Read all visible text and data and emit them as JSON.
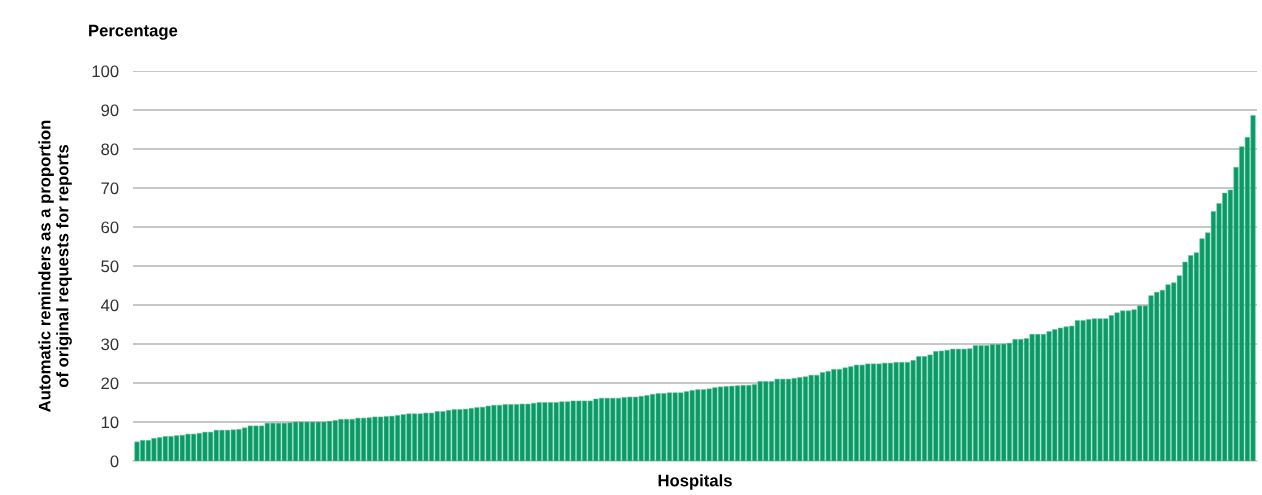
{
  "chart_data": {
    "type": "bar",
    "title": "Percentage",
    "xlabel": "Hospitals",
    "ylabel": "Automatic reminders as a proportion\nof original requests for reports",
    "categories": [
      null,
      null,
      null,
      null,
      null,
      null,
      null,
      null,
      null,
      null,
      null,
      null,
      null,
      null,
      null,
      null,
      null,
      null,
      null,
      null,
      null,
      null,
      null,
      null,
      null,
      null,
      null,
      null,
      null,
      null,
      null,
      null,
      null,
      null,
      null,
      null,
      null,
      null,
      null,
      null,
      null,
      null,
      null,
      null,
      null,
      null,
      null,
      null,
      null,
      null,
      null,
      null,
      null,
      null,
      null,
      null,
      null,
      null,
      null,
      null,
      null,
      null,
      null,
      null,
      null,
      null,
      null,
      null,
      null,
      null,
      null,
      null,
      null,
      null,
      null,
      null,
      null,
      null,
      null,
      null,
      null,
      null,
      null,
      null,
      null,
      null,
      null,
      null,
      null,
      null,
      null,
      null,
      null,
      null,
      null,
      null,
      null,
      null,
      null,
      null,
      null,
      null,
      null,
      null,
      null,
      null,
      null,
      null,
      null,
      null,
      null,
      null,
      null,
      null,
      null,
      null,
      null,
      null,
      null,
      null,
      null,
      null,
      null,
      null,
      null,
      null,
      null,
      null,
      null,
      null,
      null,
      null,
      null,
      null,
      null,
      null,
      null,
      null,
      null,
      null,
      null,
      null,
      null,
      null,
      null,
      null,
      null,
      null,
      null,
      null,
      null,
      null,
      null,
      null,
      null,
      null,
      null,
      null,
      null,
      null,
      null,
      null,
      null,
      null,
      null,
      null,
      null,
      null,
      null,
      null,
      null,
      null,
      null,
      null,
      null,
      null,
      null,
      null,
      null,
      null,
      null,
      null,
      null,
      null,
      null,
      null,
      null,
      null,
      null,
      null,
      null,
      null,
      null,
      null,
      null,
      null,
      null,
      null
    ],
    "values": [
      4.9,
      5.3,
      5.3,
      5.8,
      6,
      6.3,
      6.3,
      6.5,
      6.6,
      6.9,
      6.9,
      7.1,
      7.4,
      7.4,
      7.9,
      7.9,
      7.9,
      8,
      8.1,
      8.5,
      9,
      9,
      9,
      9.7,
      9.7,
      9.7,
      9.7,
      9.8,
      10,
      10,
      10,
      10,
      10,
      10,
      10.2,
      10.4,
      10.7,
      10.7,
      10.7,
      11,
      11,
      11.1,
      11.3,
      11.3,
      11.4,
      11.5,
      11.7,
      11.9,
      12.1,
      12.1,
      12.1,
      12.3,
      12.3,
      12.7,
      12.7,
      13,
      13.2,
      13.2,
      13.3,
      13.5,
      13.7,
      13.8,
      14.1,
      14.3,
      14.3,
      14.5,
      14.5,
      14.5,
      14.6,
      14.6,
      14.8,
      15,
      15,
      15,
      15,
      15.2,
      15.2,
      15.4,
      15.4,
      15.4,
      15.4,
      15.9,
      16.1,
      16.1,
      16.1,
      16.1,
      16.3,
      16.4,
      16.4,
      16.6,
      16.8,
      17.1,
      17.3,
      17.3,
      17.5,
      17.5,
      17.5,
      17.8,
      18.1,
      18.3,
      18.3,
      18.5,
      18.8,
      19,
      19.1,
      19.2,
      19.3,
      19.4,
      19.4,
      19.6,
      20.4,
      20.4,
      20.4,
      21,
      21,
      21,
      21.2,
      21.4,
      21.6,
      22,
      22,
      22.7,
      23,
      23.5,
      23.5,
      23.9,
      24.2,
      24.6,
      24.6,
      24.9,
      24.9,
      24.9,
      25.1,
      25.1,
      25.3,
      25.3,
      25.3,
      25.8,
      26.8,
      26.8,
      27.2,
      28.1,
      28.2,
      28.4,
      28.7,
      28.7,
      28.7,
      28.8,
      29.6,
      29.6,
      29.6,
      29.9,
      29.9,
      30,
      30.2,
      31.2,
      31.2,
      31.4,
      32.5,
      32.5,
      32.5,
      33.2,
      33.7,
      34.1,
      34.4,
      34.6,
      36,
      36,
      36.3,
      36.5,
      36.5,
      36.5,
      37.3,
      38,
      38.5,
      38.5,
      38.8,
      39.8,
      39.8,
      42.4,
      43.3,
      43.8,
      45.2,
      45.7,
      47.5,
      51,
      52.7,
      53.4,
      57,
      58.5,
      64,
      66,
      68.7,
      69.5,
      75.3,
      80.6,
      83,
      88.6
    ],
    "color": "#0a9a68",
    "ylim": [
      0,
      100
    ],
    "yticks": [
      0,
      10,
      20,
      30,
      40,
      50,
      60,
      70,
      80,
      90,
      100
    ],
    "grid": "y"
  }
}
